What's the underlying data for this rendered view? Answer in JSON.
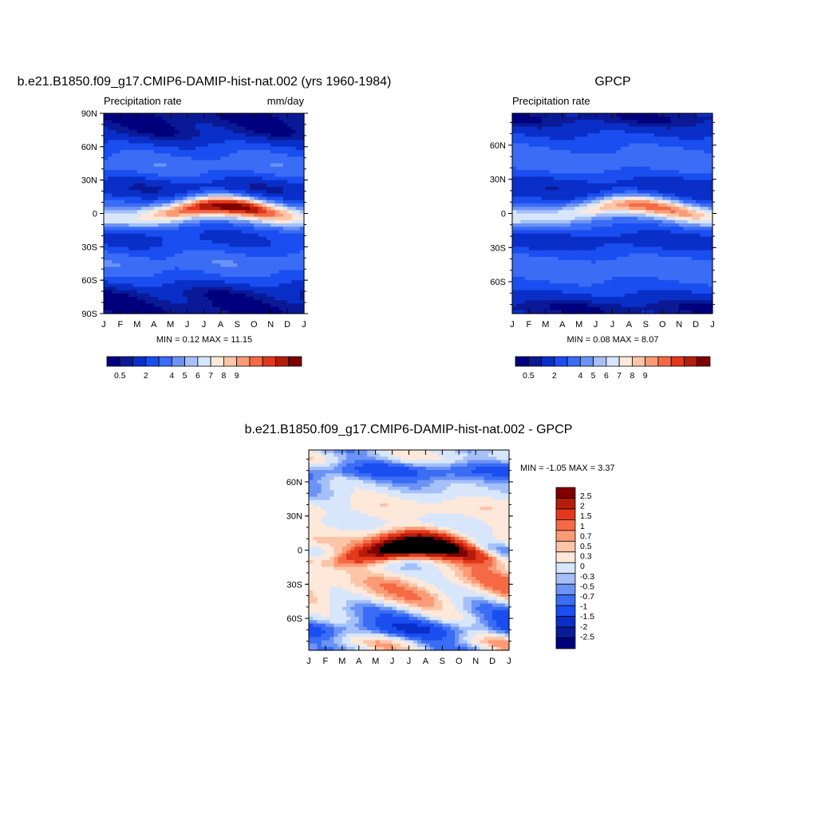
{
  "chart_data": [
    {
      "type": "heatmap",
      "title": "b.e21.B1850.f09_g17.CMIP6-DAMIP-hist-nat.002 (yrs 1960-1984)",
      "left_label": "Precipitation rate",
      "right_label": "mm/day",
      "months": [
        "J",
        "F",
        "M",
        "A",
        "M",
        "J",
        "J",
        "A",
        "S",
        "O",
        "N",
        "D",
        "J"
      ],
      "lat_ticks": [
        "90N",
        "60N",
        "30N",
        "0",
        "30S",
        "60S",
        "90S"
      ],
      "lat_values": [
        90,
        60,
        30,
        0,
        -30,
        -60,
        -90
      ],
      "ylim": [
        -90,
        90
      ],
      "stats": "MIN =   0.12 MAX =  11.15",
      "colorbar_labels": [
        "0.5",
        "2",
        "4",
        "5",
        "6",
        "7",
        "8",
        "9"
      ],
      "levels": [
        0.5,
        1,
        2,
        3,
        4,
        5,
        6,
        7,
        8,
        9,
        10,
        11,
        12,
        13
      ],
      "itcz_peak": 11.15,
      "min_value": 0.12
    },
    {
      "type": "heatmap",
      "title": "GPCP",
      "left_label": "Precipitation rate",
      "months": [
        "J",
        "F",
        "M",
        "A",
        "M",
        "J",
        "J",
        "A",
        "S",
        "O",
        "N",
        "D",
        "J"
      ],
      "lat_ticks": [
        "60N",
        "30N",
        "0",
        "30S",
        "60S"
      ],
      "lat_values": [
        60,
        30,
        0,
        -30,
        -60
      ],
      "ylim": [
        -88,
        88
      ],
      "stats": "MIN =   0.08 MAX =   8.07",
      "colorbar_labels": [
        "0.5",
        "2",
        "4",
        "5",
        "6",
        "7",
        "8",
        "9"
      ],
      "itcz_peak": 8.07,
      "min_value": 0.08
    },
    {
      "type": "heatmap",
      "title": "b.e21.B1850.f09_g17.CMIP6-DAMIP-hist-nat.002 - GPCP",
      "months": [
        "J",
        "F",
        "M",
        "A",
        "M",
        "J",
        "J",
        "A",
        "S",
        "O",
        "N",
        "D",
        "J"
      ],
      "lat_ticks": [
        "60N",
        "30N",
        "0",
        "30S",
        "60S"
      ],
      "lat_values": [
        60,
        30,
        0,
        -30,
        -60
      ],
      "ylim": [
        -88,
        88
      ],
      "stats": "MIN =  -1.05 MAX =   3.37",
      "colorbar_labels": [
        "2.5",
        "2",
        "1.5",
        "1",
        "0.7",
        "0.5",
        "0.3",
        "0",
        "-0.3",
        "-0.5",
        "-0.7",
        "-1",
        "-1.5",
        "-2",
        "-2.5"
      ],
      "levels": [
        -2.5,
        -2,
        -1.5,
        -1,
        -0.7,
        -0.5,
        -0.3,
        0,
        0.3,
        0.5,
        0.7,
        1,
        1.5,
        2,
        2.5
      ],
      "max_value": 3.37,
      "min_value": -1.05
    }
  ],
  "colors": {
    "precip": [
      "#00007f",
      "#0a1a96",
      "#0a2fc8",
      "#1a4ef0",
      "#3a6cf5",
      "#6b93f5",
      "#a5c0f8",
      "#d7e6fb",
      "#fde8da",
      "#fcc5a8",
      "#fa9b76",
      "#f56a45",
      "#e4381c",
      "#b51d0a",
      "#7f0000"
    ],
    "diff": [
      "#00007f",
      "#0a1a96",
      "#0a2fc8",
      "#1a4ef0",
      "#3a6cf5",
      "#6b93f5",
      "#a5c0f8",
      "#d7e6fb",
      "#fde8da",
      "#fcc5a8",
      "#fa9b76",
      "#f56a45",
      "#e4381c",
      "#b51d0a",
      "#7f0000"
    ]
  }
}
